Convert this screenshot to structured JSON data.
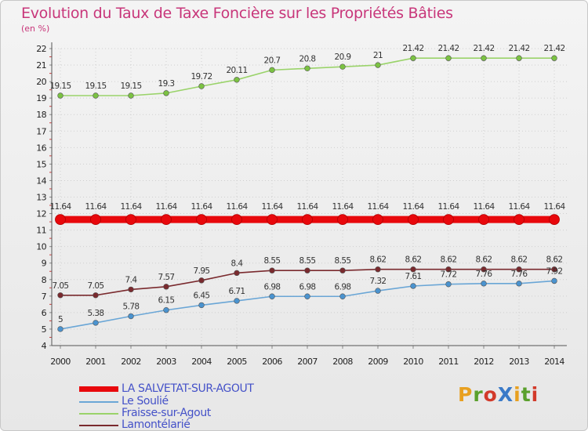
{
  "chart_data": {
    "type": "line",
    "title": "Evolution du Taux de Taxe Foncière sur les Propriétés Bâties",
    "ylabel": "(en %)",
    "xlabel": "",
    "x": [
      "2000",
      "2001",
      "2002",
      "2003",
      "2004",
      "2005",
      "2006",
      "2007",
      "2008",
      "2009",
      "2010",
      "2011",
      "2012",
      "2013",
      "2014"
    ],
    "ylim": [
      4,
      22
    ],
    "yticks": [
      4,
      5,
      6,
      7,
      8,
      9,
      10,
      11,
      12,
      13,
      14,
      15,
      16,
      17,
      18,
      19,
      20,
      21,
      22
    ],
    "grid": true,
    "series": [
      {
        "name": "Fraisse-sur-Agout",
        "color": "#9ad36a",
        "marker": "#7bc242",
        "values": [
          19.15,
          19.15,
          19.15,
          19.3,
          19.72,
          20.11,
          20.7,
          20.8,
          20.9,
          21,
          21.42,
          21.42,
          21.42,
          21.42,
          21.42
        ],
        "labels": [
          "19.15",
          "19.15",
          "19.15",
          "19.3",
          "19.72",
          "20.11",
          "20.7",
          "20.8",
          "20.9",
          "21",
          "21.42",
          "21.42",
          "21.42",
          "21.42",
          "21.42"
        ]
      },
      {
        "name": "LA SALVETAT-SUR-AGOUT",
        "color": "#e8080c",
        "marker": "#e8080c",
        "values": [
          11.64,
          11.64,
          11.64,
          11.64,
          11.64,
          11.64,
          11.64,
          11.64,
          11.64,
          11.64,
          11.64,
          11.64,
          11.64,
          11.64,
          11.64
        ],
        "labels": [
          "11.64",
          "11.64",
          "11.64",
          "11.64",
          "11.64",
          "11.64",
          "11.64",
          "11.64",
          "11.64",
          "11.64",
          "11.64",
          "11.64",
          "11.64",
          "11.64",
          "11.64"
        ]
      },
      {
        "name": "Lamontélarié",
        "color": "#7a2a2e",
        "marker": "#7a2a2e",
        "values": [
          7.05,
          7.05,
          7.4,
          7.57,
          7.95,
          8.4,
          8.55,
          8.55,
          8.55,
          8.62,
          8.62,
          8.62,
          8.62,
          8.62,
          8.62
        ],
        "labels": [
          "7.05",
          "7.05",
          "7.4",
          "7.57",
          "7.95",
          "8.4",
          "8.55",
          "8.55",
          "8.55",
          "8.62",
          "8.62",
          "8.62",
          "8.62",
          "8.62",
          "8.62"
        ]
      },
      {
        "name": "Le Soulié",
        "color": "#6aa6d6",
        "marker": "#4a93cf",
        "values": [
          5,
          5.38,
          5.78,
          6.15,
          6.45,
          6.71,
          6.98,
          6.98,
          6.98,
          7.32,
          7.61,
          7.72,
          7.76,
          7.76,
          7.92
        ],
        "labels": [
          "5",
          "5.38",
          "5.78",
          "6.15",
          "6.45",
          "6.71",
          "6.98",
          "6.98",
          "6.98",
          "7.32",
          "7.61",
          "7.72",
          "7.76",
          "7.76",
          "7.92"
        ]
      }
    ]
  },
  "legend": [
    {
      "name": "LA SALVETAT-SUR-AGOUT",
      "color": "#e8080c",
      "thickness": "thick"
    },
    {
      "name": "Le Soulié",
      "color": "#6aa6d6",
      "thickness": "thin"
    },
    {
      "name": "Fraisse-sur-Agout",
      "color": "#9ad36a",
      "thickness": "thin"
    },
    {
      "name": "Lamontélarié",
      "color": "#7a2a2e",
      "thickness": "thin"
    }
  ],
  "logo": {
    "text": "ProXiti",
    "letter_colors": [
      "#e8a020",
      "#5aa02c",
      "#d23a2a",
      "#3a7ac8",
      "#e8a020",
      "#5aa02c",
      "#d23a2a"
    ]
  }
}
